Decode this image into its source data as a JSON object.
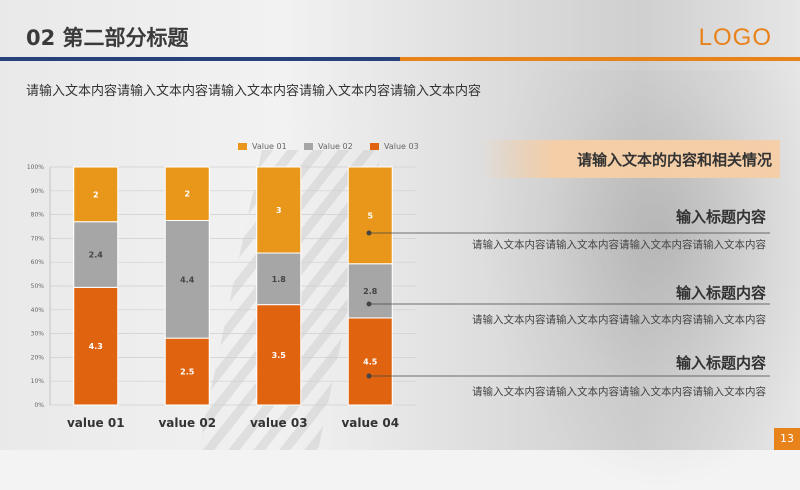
{
  "header": {
    "title": "02  第二部分标题",
    "logo": "LOGO"
  },
  "subtitle": "请输入文本内容请输入文本内容请输入文本内容请输入文本内容请输入文本内容",
  "colors": {
    "series1": "#e8971a",
    "series2": "#a6a6a6",
    "series3": "#e0640f",
    "brand_blue": "#27427a",
    "brand_orange": "#e8821a"
  },
  "chart_data": {
    "type": "bar",
    "stacked": "percent",
    "categories": [
      "value 01",
      "value 02",
      "value 03",
      "value 04"
    ],
    "series": [
      {
        "name": "Value 01",
        "values": [
          2,
          2,
          3,
          5
        ]
      },
      {
        "name": "Value 02",
        "values": [
          2.4,
          4.4,
          1.8,
          2.8
        ]
      },
      {
        "name": "Value 03",
        "values": [
          4.3,
          2.5,
          3.5,
          4.5
        ]
      }
    ],
    "yticks": [
      "0%",
      "10%",
      "20%",
      "30%",
      "40%",
      "50%",
      "60%",
      "70%",
      "80%",
      "90%",
      "100%"
    ],
    "ylim": [
      0,
      100
    ],
    "grid": true,
    "legend": "top"
  },
  "panel": {
    "banner": "请输入文本的内容和相关情况",
    "items": [
      {
        "title": "输入标题内容",
        "desc": "请输入文本内容请输入文本内容请输入文本内容请输入文本内容"
      },
      {
        "title": "输入标题内容",
        "desc": "请输入文本内容请输入文本内容请输入文本内容请输入文本内容"
      },
      {
        "title": "输入标题内容",
        "desc": "请输入文本内容请输入文本内容请输入文本内容请输入文本内容"
      }
    ]
  },
  "page_number": "13"
}
